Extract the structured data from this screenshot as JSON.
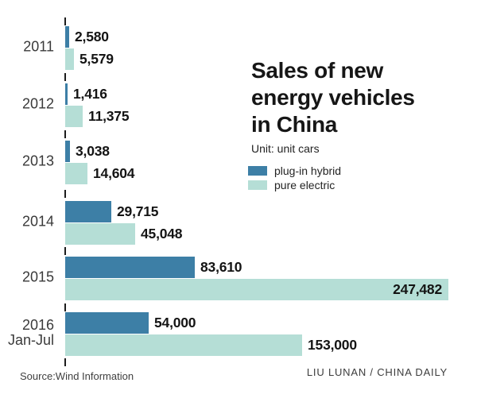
{
  "title_lines": [
    "Sales of new",
    "energy vehicles",
    "in China"
  ],
  "unit_label": "Unit: unit cars",
  "legend": {
    "items": [
      {
        "label": "plug-in hybrid",
        "color": "#3d7fa6"
      },
      {
        "label": "pure electric",
        "color": "#b5ded6"
      }
    ]
  },
  "source": "Source:Wind Information",
  "credit": "LIU LUNAN / CHINA DAILY",
  "colors": {
    "plugin_hybrid": "#3d7fa6",
    "pure_electric": "#b5ded6",
    "text": "#141414",
    "background": "#ffffff"
  },
  "chart_data": {
    "type": "bar",
    "orientation": "horizontal",
    "title": "Sales of new energy vehicles in China",
    "unit": "unit cars",
    "xlim": [
      0,
      250000
    ],
    "grid": false,
    "legend_position": "top-right",
    "categories": [
      "2011",
      "2012",
      "2013",
      "2014",
      "2015",
      "2016 Jan-Jul"
    ],
    "category_lines": [
      [
        "2011"
      ],
      [
        "2012"
      ],
      [
        "2013"
      ],
      [
        "2014"
      ],
      [
        "2015"
      ],
      [
        "2016",
        "Jan-Jul"
      ]
    ],
    "series": [
      {
        "name": "plug-in hybrid",
        "color": "#3d7fa6",
        "values": [
          2580,
          1416,
          3038,
          29715,
          83610,
          54000
        ],
        "labels": [
          "2,580",
          "1,416",
          "3,038",
          "29,715",
          "83,610",
          "54,000"
        ]
      },
      {
        "name": "pure electric",
        "color": "#b5ded6",
        "values": [
          5579,
          11375,
          14604,
          45048,
          247482,
          153000
        ],
        "labels": [
          "5,579",
          "11,375",
          "14,604",
          "45,048",
          "247,482",
          "153,000"
        ]
      }
    ]
  }
}
